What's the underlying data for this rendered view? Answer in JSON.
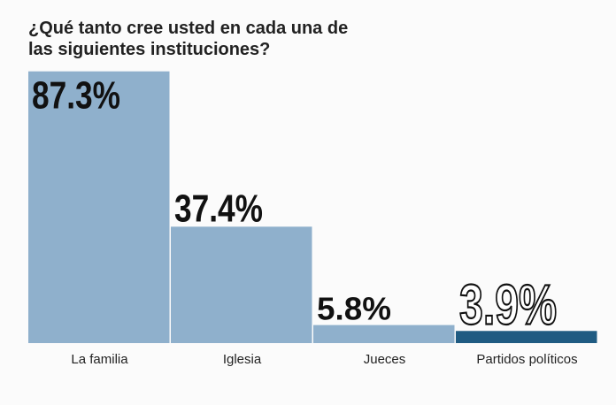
{
  "chart_data": {
    "type": "bar",
    "title": "¿Qué tanto cree usted en cada una de las siguientes instituciones?",
    "categories": [
      "La familia",
      "Iglesia",
      "Jueces",
      "Partidos políticos"
    ],
    "values": [
      87.3,
      37.4,
      5.8,
      3.9
    ],
    "value_labels": [
      "87.3%",
      "37.4%",
      "5.8%",
      "3.9%"
    ],
    "ylim": [
      0,
      90
    ],
    "grid": false,
    "legend": "none",
    "colors": {
      "bar": "#8fb0cc",
      "highlight_bar": "#1f5b82",
      "label": "#111111",
      "background": "#fbfbfb"
    },
    "highlight_index": 3
  }
}
